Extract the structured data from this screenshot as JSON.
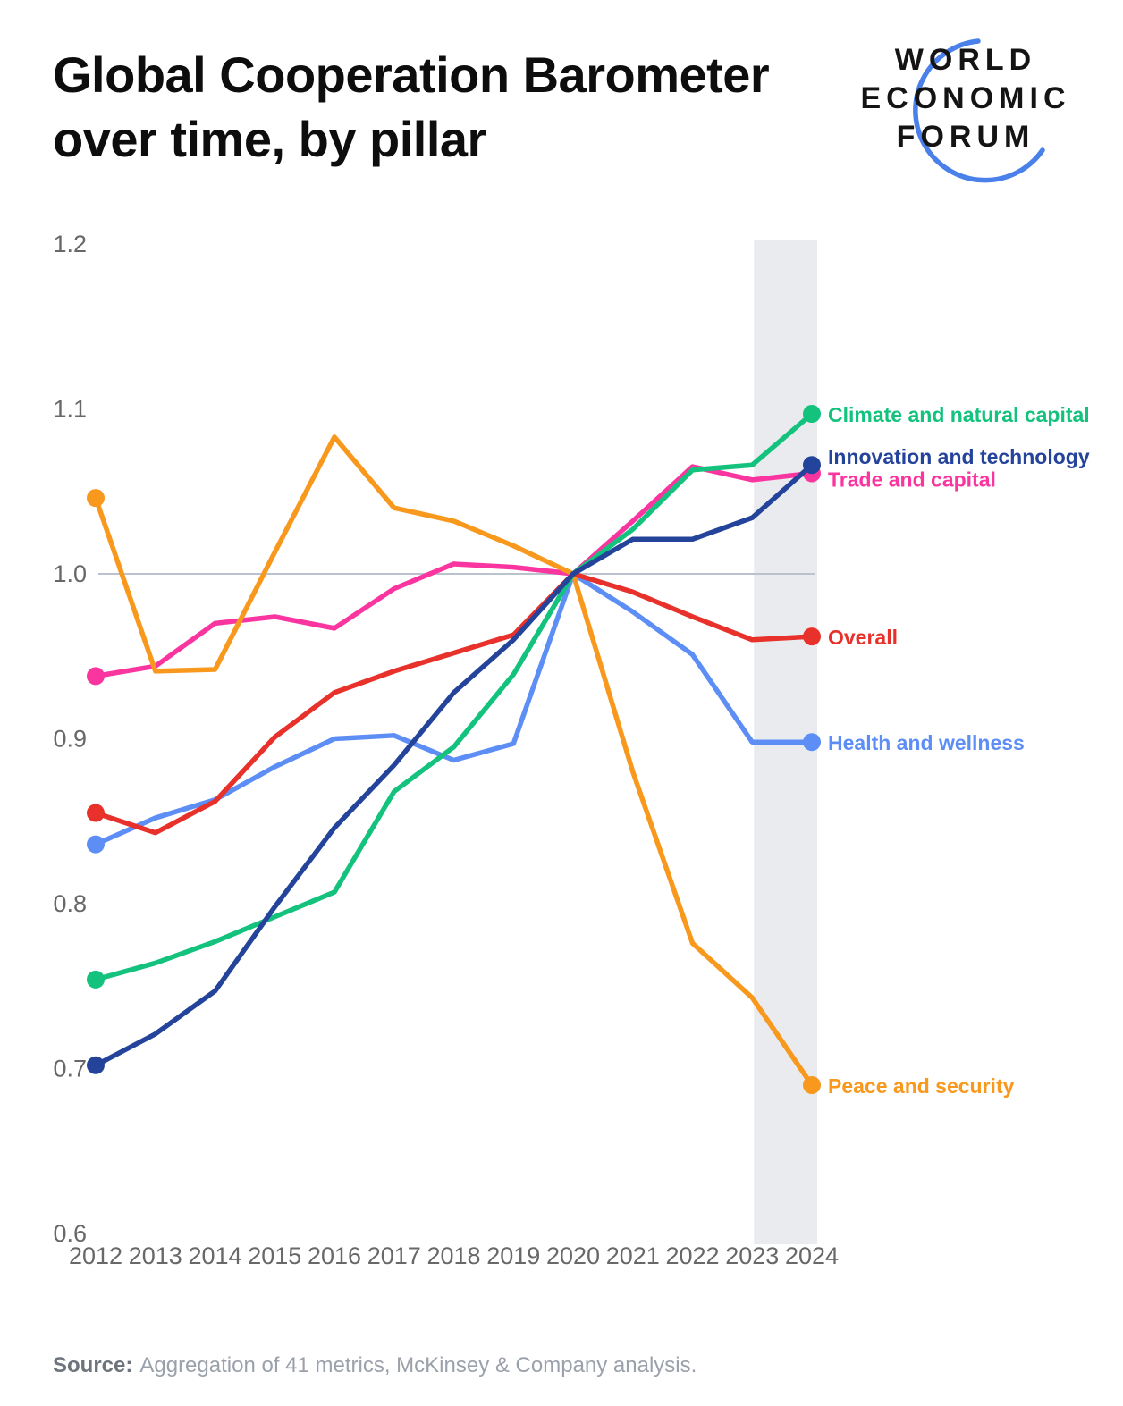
{
  "header": {
    "title_line1": "Global Cooperation Barometer",
    "title_line2": "over time, by pillar"
  },
  "logo": {
    "line1": "WORLD",
    "line2": "ECONOMIC",
    "line3": "FORUM",
    "arc_color": "#4a80e9"
  },
  "source": {
    "label": "Source:",
    "text": "Aggregation of 41 metrics, McKinsey & Company analysis."
  },
  "chart_data": {
    "type": "line",
    "x": [
      2012,
      2013,
      2014,
      2015,
      2016,
      2017,
      2018,
      2019,
      2020,
      2021,
      2022,
      2023,
      2024
    ],
    "x_tick_labels": [
      "2012",
      "2013",
      "2014",
      "2015",
      "2016",
      "2017",
      "2018",
      "2019",
      "2020",
      "2021",
      "2022",
      "2023",
      "2024"
    ],
    "y_ticks": [
      1.2,
      1.1,
      1.0,
      0.9,
      0.8,
      0.7,
      0.6
    ],
    "ylim": [
      0.6,
      1.2
    ],
    "baseline_gridline": 1.0,
    "highlight_band_years": [
      2023,
      2024
    ],
    "highlight_band_color": "#e9ebef",
    "gridline_color": "#b9c2cd",
    "tick_label_color": "#686868",
    "series": [
      {
        "name": "Climate and natural capital",
        "color": "#12c27d",
        "values": [
          0.754,
          0.764,
          0.777,
          0.792,
          0.807,
          0.868,
          0.895,
          0.939,
          1.0,
          1.027,
          1.063,
          1.066,
          1.097
        ]
      },
      {
        "name": "Innovation and technology",
        "color": "#24439a",
        "values": [
          0.702,
          0.721,
          0.747,
          0.798,
          0.846,
          0.884,
          0.928,
          0.96,
          1.0,
          1.021,
          1.021,
          1.034,
          1.066
        ]
      },
      {
        "name": "Trade and capital",
        "color": "#fa35a0",
        "values": [
          0.938,
          0.944,
          0.97,
          0.974,
          0.967,
          0.991,
          1.006,
          1.004,
          1.0,
          1.032,
          1.065,
          1.057,
          1.061
        ]
      },
      {
        "name": "Overall",
        "color": "#e8312a",
        "values": [
          0.855,
          0.843,
          0.862,
          0.901,
          0.928,
          0.941,
          0.952,
          0.963,
          1.0,
          0.989,
          0.974,
          0.96,
          0.962
        ]
      },
      {
        "name": "Health and wellness",
        "color": "#5d8ef6",
        "values": [
          0.836,
          0.852,
          0.863,
          0.883,
          0.9,
          0.902,
          0.887,
          0.897,
          1.0,
          0.977,
          0.951,
          0.898,
          0.898
        ]
      },
      {
        "name": "Peace and security",
        "color": "#f8981d",
        "values": [
          1.046,
          0.941,
          0.942,
          1.013,
          1.083,
          1.04,
          1.032,
          1.017,
          1.0,
          0.88,
          0.776,
          0.743,
          0.69
        ]
      }
    ],
    "legend_position": "right-of-line-endpoints",
    "grid": "off"
  }
}
